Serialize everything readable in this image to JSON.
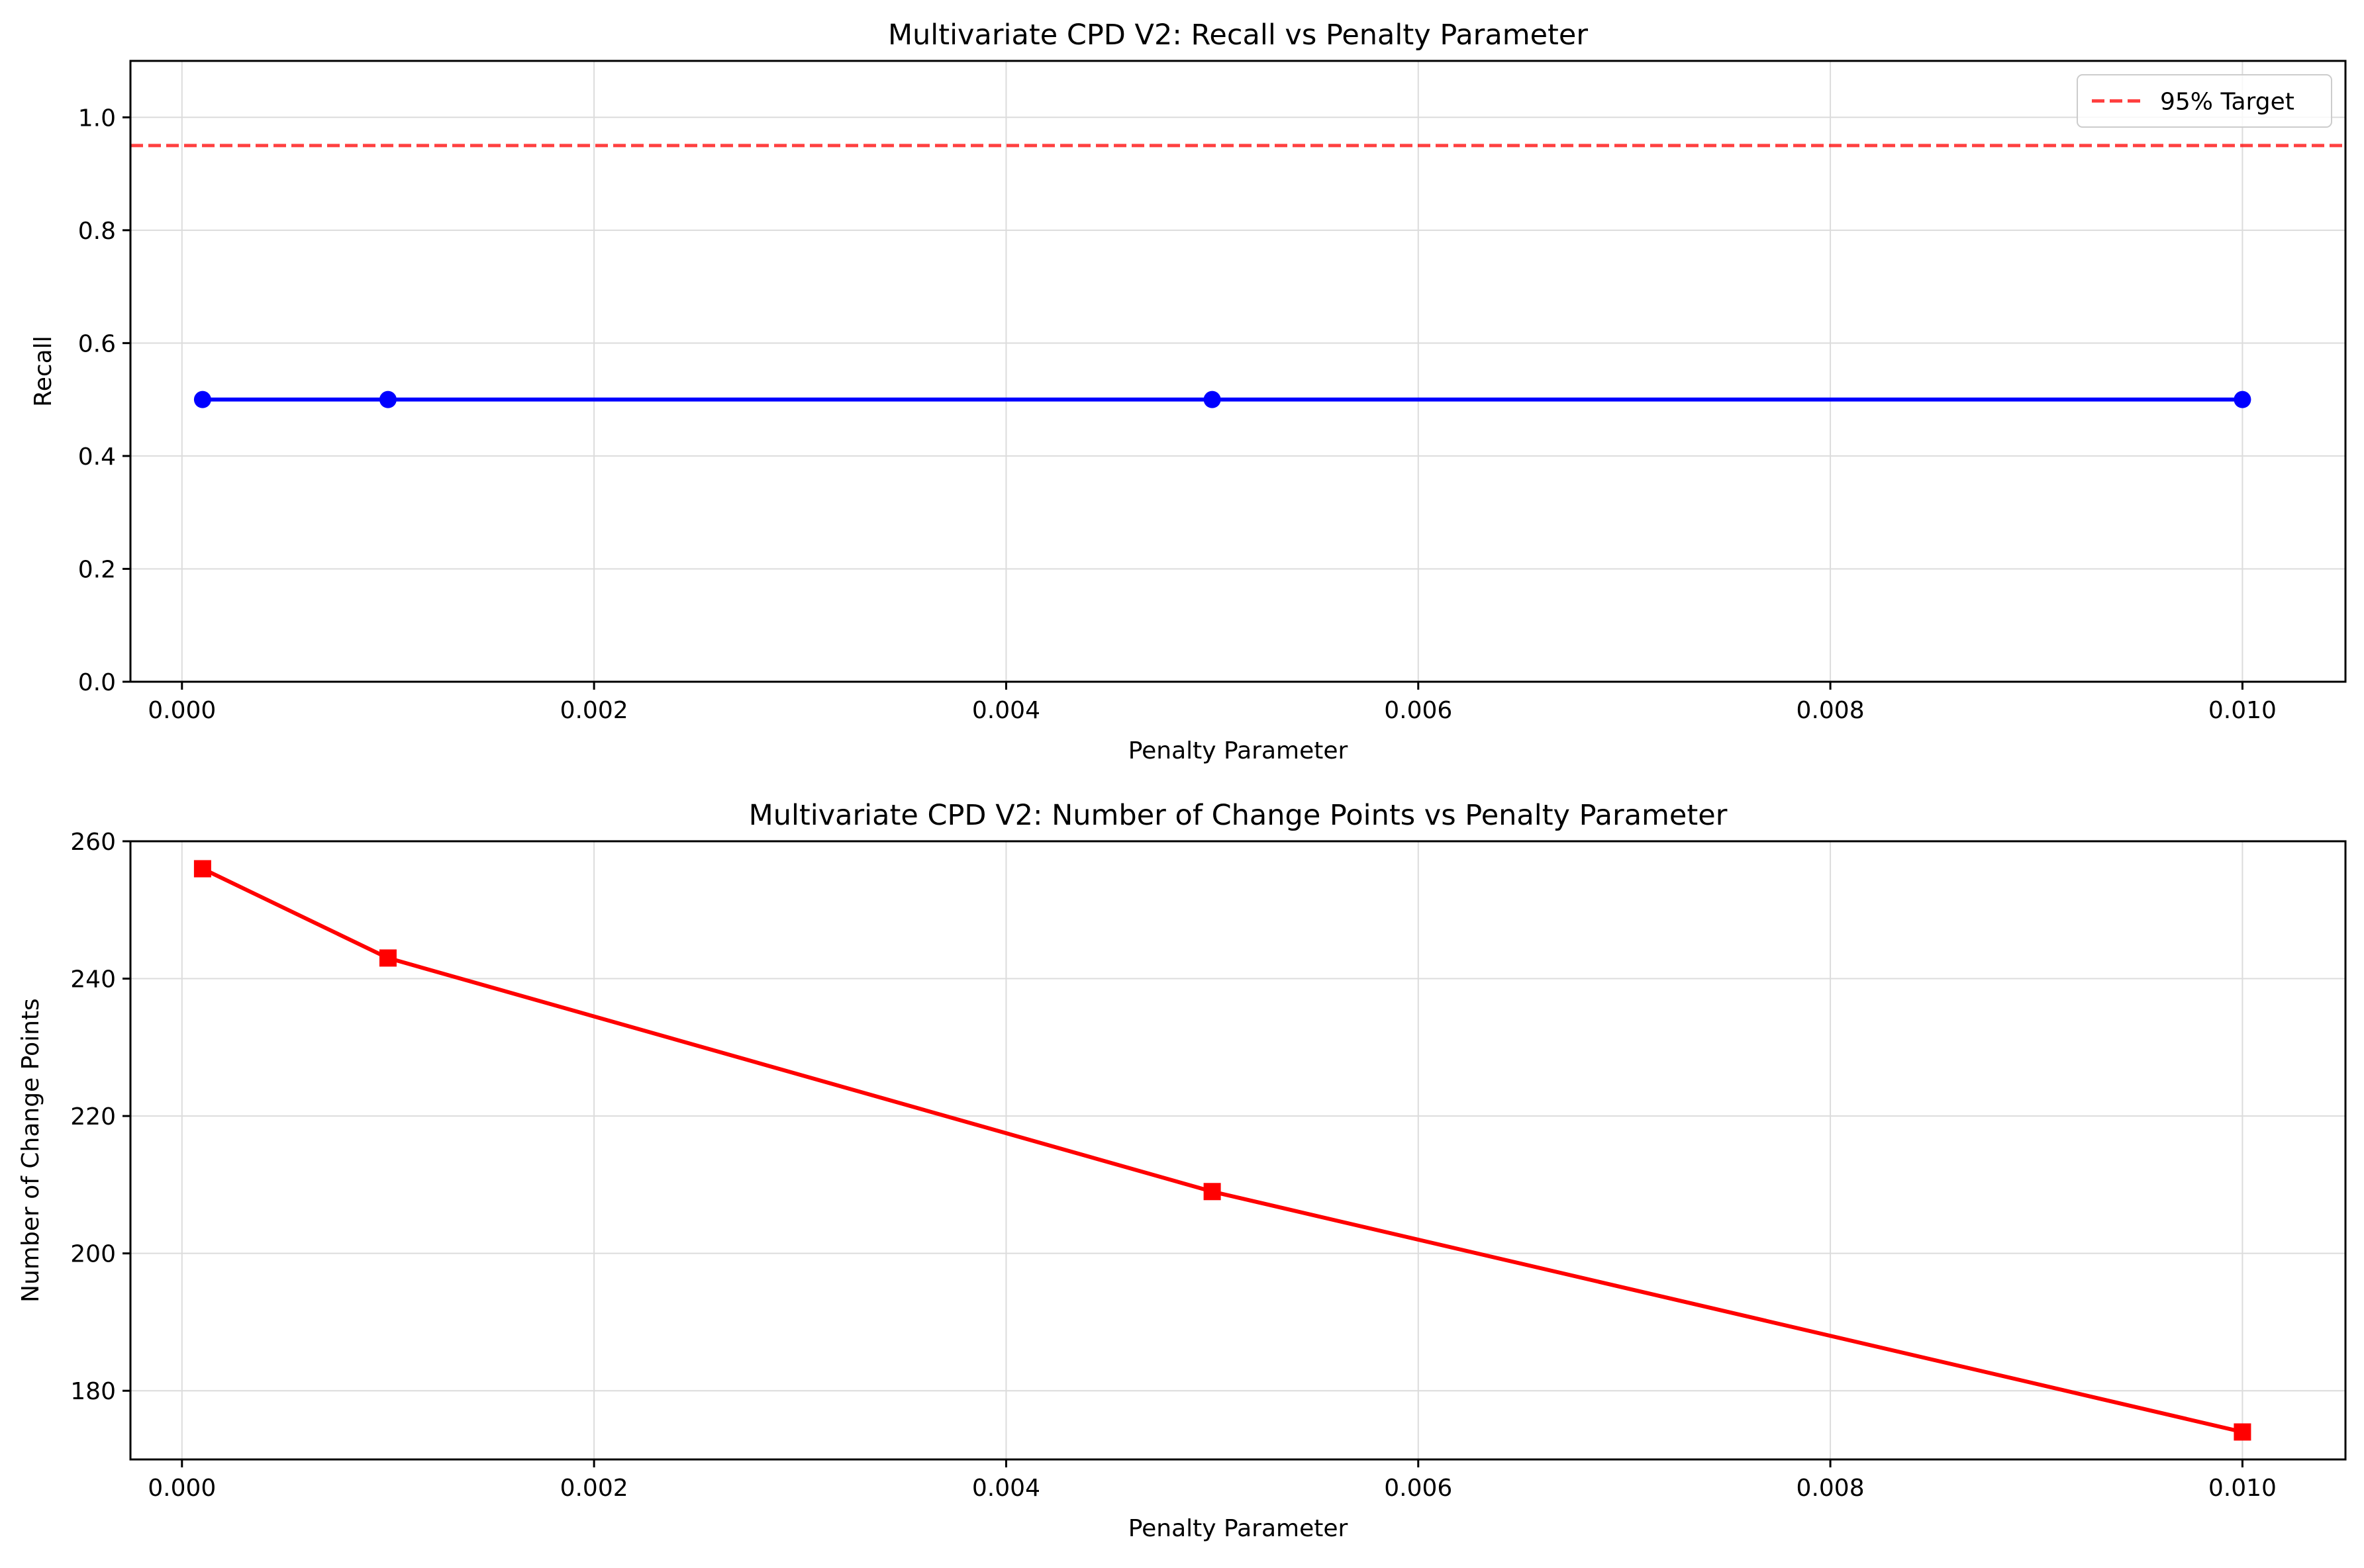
{
  "chart_data": [
    {
      "type": "line",
      "title": "Multivariate CPD V2: Recall vs Penalty Parameter",
      "xlabel": "Penalty Parameter",
      "ylabel": "Recall",
      "xlim": [
        -0.00025,
        0.0105
      ],
      "ylim": [
        0,
        1.1
      ],
      "xticks": [
        0.0,
        0.002,
        0.004,
        0.006,
        0.008,
        0.01
      ],
      "xtick_labels": [
        "0.000",
        "0.002",
        "0.004",
        "0.006",
        "0.008",
        "0.010"
      ],
      "yticks": [
        0.0,
        0.2,
        0.4,
        0.6,
        0.8,
        1.0
      ],
      "ytick_labels": [
        "0.0",
        "0.2",
        "0.4",
        "0.6",
        "0.8",
        "1.0"
      ],
      "grid": true,
      "legend_position": "top-right",
      "series": [
        {
          "x": [
            0.0001,
            0.001,
            0.005,
            0.01
          ],
          "values": [
            0.5,
            0.5,
            0.5,
            0.5
          ],
          "color": "#0000ff",
          "marker": "circle"
        }
      ],
      "reference_lines": [
        {
          "name": "95% Target",
          "y": 0.95,
          "color": "#ff0000",
          "style": "dashed"
        }
      ]
    },
    {
      "type": "line",
      "title": "Multivariate CPD V2: Number of Change Points vs Penalty Parameter",
      "xlabel": "Penalty Parameter",
      "ylabel": "Number of Change Points",
      "xlim": [
        -0.00025,
        0.0105
      ],
      "ylim": [
        170,
        260
      ],
      "xticks": [
        0.0,
        0.002,
        0.004,
        0.006,
        0.008,
        0.01
      ],
      "xtick_labels": [
        "0.000",
        "0.002",
        "0.004",
        "0.006",
        "0.008",
        "0.010"
      ],
      "yticks": [
        180,
        200,
        220,
        240,
        260
      ],
      "ytick_labels": [
        "180",
        "200",
        "220",
        "240",
        "260"
      ],
      "grid": true,
      "series": [
        {
          "x": [
            0.0001,
            0.001,
            0.005,
            0.01
          ],
          "values": [
            256,
            243,
            209,
            174
          ],
          "color": "#ff0000",
          "marker": "square"
        }
      ]
    }
  ]
}
